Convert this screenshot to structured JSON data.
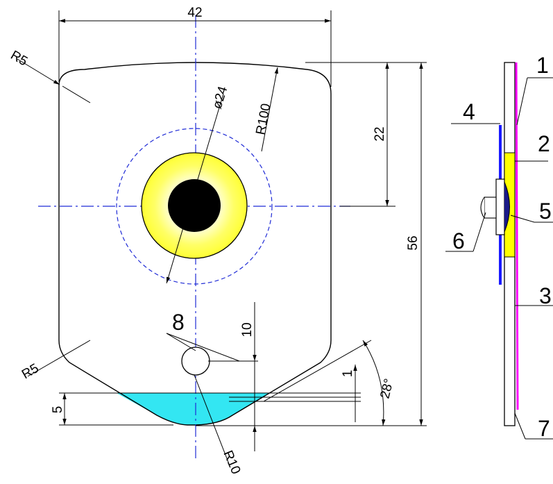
{
  "front_view": {
    "dim_width": "42",
    "dim_top_to_center": "22",
    "dim_height": "56",
    "dim_bottom_radius": "R10",
    "dim_top_radius": "R100",
    "dim_corner_radius_top": "R5",
    "dim_corner_radius_bottom": "R5",
    "dim_circle_diameter": "ø24",
    "dim_small_height": "5",
    "dim_hole_offset": "10",
    "dim_one": "1",
    "dim_angle": "28°",
    "callout_hole": "8"
  },
  "side_view": {
    "callouts": [
      "1",
      "2",
      "3",
      "4",
      "5",
      "6",
      "7"
    ]
  },
  "colors": {
    "outline": "#000000",
    "center_line": "#1f2bd6",
    "ring": "#ffff33",
    "ring_inner_glow": "#ffffcc",
    "cyan_fill": "#33e6f2",
    "magenta_layer": "#ff00ff",
    "blue_layer": "#1a1aff",
    "yellow_layer": "#ffff00"
  }
}
